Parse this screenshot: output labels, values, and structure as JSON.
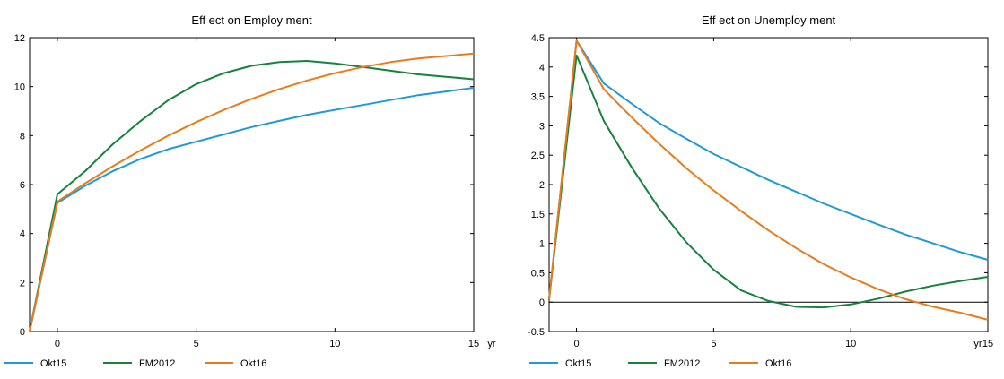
{
  "chart_data": [
    {
      "type": "line",
      "title": "Eff ect on Employ ment",
      "xlabel": "",
      "ylabel": "",
      "xlim": [
        -1,
        15
      ],
      "ylim": [
        0,
        12
      ],
      "x_ticks": [
        0,
        5,
        10,
        15
      ],
      "x_tick_labels": [
        "0",
        "5",
        "10",
        "15"
      ],
      "x_unit": "yr",
      "y_ticks": [
        0,
        2,
        4,
        6,
        8,
        10,
        12
      ],
      "y_tick_labels": [
        "0",
        "2",
        "4",
        "6",
        "8",
        "10",
        "12"
      ],
      "zero_line": false,
      "grid": false,
      "legend_position": "bottom-left",
      "x": [
        -1,
        0,
        1,
        2,
        3,
        4,
        5,
        6,
        7,
        8,
        9,
        10,
        11,
        12,
        13,
        14,
        15
      ],
      "series": [
        {
          "name": "Okt15",
          "color": "#1f9ad6",
          "values": [
            0,
            5.25,
            5.95,
            6.55,
            7.05,
            7.45,
            7.75,
            8.05,
            8.35,
            8.6,
            8.85,
            9.05,
            9.25,
            9.45,
            9.65,
            9.8,
            9.95
          ]
        },
        {
          "name": "FM2012",
          "color": "#15823d",
          "values": [
            0,
            5.6,
            6.55,
            7.65,
            8.6,
            9.45,
            10.1,
            10.55,
            10.85,
            11.0,
            11.05,
            10.95,
            10.8,
            10.65,
            10.5,
            10.4,
            10.3
          ]
        },
        {
          "name": "Okt16",
          "color": "#e87c1c",
          "values": [
            0,
            5.3,
            6.05,
            6.75,
            7.4,
            8.0,
            8.55,
            9.05,
            9.5,
            9.9,
            10.25,
            10.55,
            10.8,
            11.0,
            11.15,
            11.25,
            11.35
          ]
        }
      ]
    },
    {
      "type": "line",
      "title": "Eff ect on Unemploy ment",
      "xlabel": "",
      "ylabel": "",
      "xlim": [
        -1,
        15
      ],
      "ylim": [
        -0.5,
        4.5
      ],
      "x_ticks": [
        0,
        5,
        10,
        15
      ],
      "x_tick_labels": [
        "0",
        "5",
        "10",
        "15"
      ],
      "x_unit": "yr",
      "y_ticks": [
        -0.5,
        0,
        0.5,
        1,
        1.5,
        2,
        2.5,
        3,
        3.5,
        4,
        4.5
      ],
      "y_tick_labels": [
        "-0.5",
        "0",
        "0.5",
        "1",
        "1.5",
        "2",
        "2.5",
        "3",
        "3.5",
        "4",
        "4.5"
      ],
      "zero_line": true,
      "grid": false,
      "legend_position": "bottom-left",
      "x": [
        -1,
        0,
        1,
        2,
        3,
        4,
        5,
        6,
        7,
        8,
        9,
        10,
        11,
        12,
        13,
        14,
        15
      ],
      "series": [
        {
          "name": "Okt15",
          "color": "#1f9ad6",
          "values": [
            0.05,
            4.45,
            3.72,
            3.38,
            3.05,
            2.78,
            2.52,
            2.3,
            2.08,
            1.88,
            1.68,
            1.5,
            1.32,
            1.15,
            1.0,
            0.85,
            0.72
          ]
        },
        {
          "name": "FM2012",
          "color": "#15823d",
          "values": [
            0.05,
            4.2,
            3.08,
            2.3,
            1.6,
            1.02,
            0.55,
            0.2,
            0.02,
            -0.08,
            -0.09,
            -0.04,
            0.06,
            0.18,
            0.28,
            0.36,
            0.43
          ]
        },
        {
          "name": "Okt16",
          "color": "#e87c1c",
          "values": [
            0.05,
            4.45,
            3.62,
            3.15,
            2.7,
            2.28,
            1.9,
            1.55,
            1.22,
            0.92,
            0.65,
            0.42,
            0.22,
            0.05,
            -0.08,
            -0.18,
            -0.3
          ]
        }
      ]
    }
  ]
}
